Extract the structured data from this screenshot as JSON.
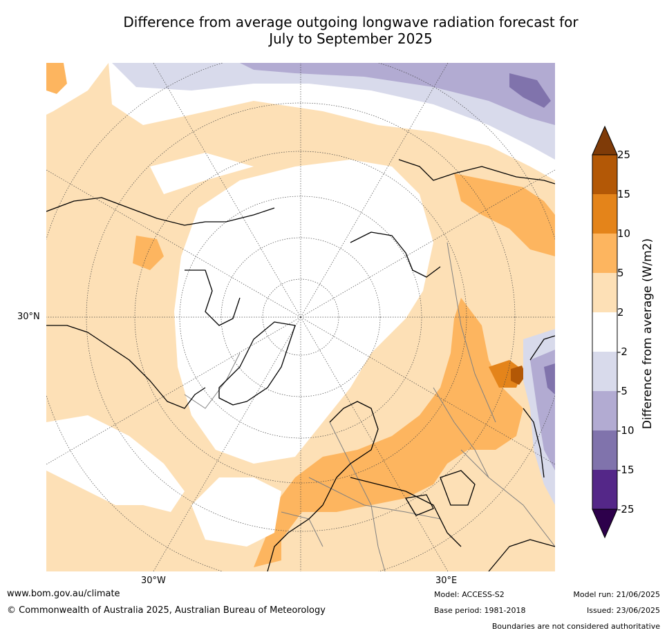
{
  "title": {
    "line1": "Difference from average outgoing longwave radiation forecast for",
    "line2": "July to September 2025"
  },
  "map": {
    "projection": "north polar stereographic",
    "lat_label": "30°N",
    "lon_label_west": "30°W",
    "lon_label_east": "30°E",
    "colors": {
      "ocean_land_neutral": "#ffffff",
      "pos_2_5": "#fde0b6",
      "pos_5_10": "#fdb55f",
      "pos_10_15": "#e4841a",
      "pos_15_25": "#b35806",
      "pos_over_25": "#7f3b08",
      "neg_2_5": "#d8daeb",
      "neg_5_10": "#b2abd2",
      "neg_10_15": "#8073ac",
      "neg_15_25": "#542788",
      "neg_over_25": "#2d004b",
      "coastline": "#000000",
      "borders": "#808080"
    }
  },
  "colorbar": {
    "label": "Difference from average (W/m2)",
    "ticks": [
      "25",
      "15",
      "10",
      "5",
      "2",
      "-2",
      "-5",
      "-10",
      "-15",
      "-25"
    ]
  },
  "footer": {
    "website": "www.bom.gov.au/climate",
    "copyright": "© Commonwealth of Australia 2025, Australian Bureau of Meteorology",
    "model": "Model: ACCESS-S2",
    "base_period": "Base period: 1981-2018",
    "model_run": "Model run: 21/06/2025",
    "issued": "Issued: 23/06/2025",
    "disclaimer": "Boundaries are not considered authoritative"
  }
}
